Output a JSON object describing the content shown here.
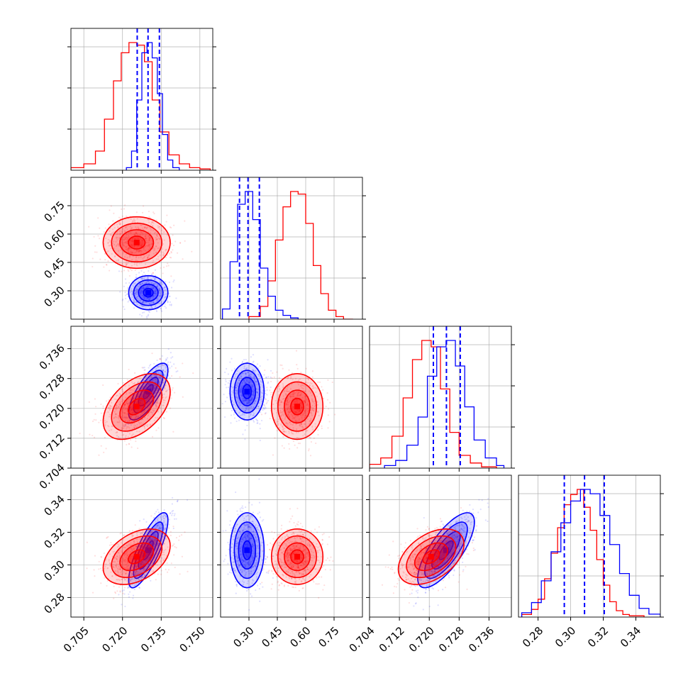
{
  "chart_data": {
    "type": "corner",
    "title": "",
    "grid": true,
    "colors": {
      "red_set": "#ff0000",
      "blue_set": "#0000ff",
      "grid": "#b0b0b0"
    },
    "parameters": [
      {
        "index": 0,
        "axis_range": [
          0.7,
          0.755
        ],
        "ticks": [
          "0.705",
          "0.720",
          "0.735",
          "0.750"
        ],
        "tick_values": [
          0.705,
          0.72,
          0.735,
          0.75
        ]
      },
      {
        "index": 1,
        "axis_range": [
          0.15,
          0.9
        ],
        "ticks": [
          "0.30",
          "0.45",
          "0.60",
          "0.75"
        ],
        "tick_values": [
          0.3,
          0.45,
          0.6,
          0.75
        ]
      },
      {
        "index": 2,
        "axis_range": [
          0.704,
          0.742
        ],
        "ticks": [
          "0.704",
          "0.712",
          "0.720",
          "0.728",
          "0.736"
        ],
        "tick_values": [
          0.704,
          0.712,
          0.72,
          0.728,
          0.736
        ]
      },
      {
        "index": 3,
        "axis_range": [
          0.268,
          0.355
        ],
        "ticks": [
          "0.28",
          "0.30",
          "0.32",
          "0.34"
        ],
        "tick_values": [
          0.28,
          0.3,
          0.32,
          0.34
        ]
      }
    ],
    "series": [
      {
        "color": "#ff0000",
        "mean": [
          0.7255,
          0.555,
          0.7205,
          0.305
        ],
        "std": [
          0.0065,
          0.068,
          0.0044,
          0.0085
        ],
        "correlations": [
          [
            0,
            1,
            0.0
          ],
          [
            0,
            2,
            0.45
          ],
          [
            0,
            3,
            0.4
          ],
          [
            1,
            2,
            0.0
          ],
          [
            1,
            3,
            0.0
          ],
          [
            2,
            3,
            0.45
          ]
        ],
        "histograms": [
          {
            "param": 0,
            "bin_edges": [
              0.7,
              0.705,
              0.7095,
              0.713,
              0.7165,
              0.7195,
              0.7225,
              0.7255,
              0.7285,
              0.7315,
              0.7345,
              0.738,
              0.742,
              0.746,
              0.75,
              0.754
            ],
            "counts": [
              2,
              5,
              15,
              40,
              70,
              92,
              100,
              98,
              85,
              55,
              30,
              12,
              5,
              2,
              1
            ]
          },
          {
            "param": 1,
            "bin_edges": [
              0.3,
              0.36,
              0.4,
              0.44,
              0.48,
              0.52,
              0.56,
              0.6,
              0.64,
              0.68,
              0.72,
              0.76,
              0.8,
              0.85
            ],
            "counts": [
              2,
              10,
              30,
              62,
              88,
              100,
              98,
              75,
              42,
              20,
              7,
              2,
              0
            ]
          },
          {
            "param": 2,
            "bin_edges": [
              0.704,
              0.707,
              0.71,
              0.713,
              0.7155,
              0.718,
              0.7205,
              0.723,
              0.7255,
              0.728,
              0.731,
              0.734,
              0.738
            ],
            "counts": [
              3,
              8,
              25,
              55,
              85,
              100,
              95,
              62,
              28,
              10,
              4,
              1
            ]
          },
          {
            "param": 3,
            "bin_edges": [
              0.27,
              0.276,
              0.28,
              0.284,
              0.288,
              0.292,
              0.296,
              0.3,
              0.304,
              0.308,
              0.312,
              0.316,
              0.32,
              0.324,
              0.328,
              0.332,
              0.336,
              0.345
            ],
            "counts": [
              2,
              6,
              14,
              30,
              50,
              70,
              88,
              96,
              100,
              86,
              68,
              45,
              25,
              12,
              5,
              2,
              1
            ]
          }
        ]
      },
      {
        "color": "#0000ff",
        "mean": [
          0.73,
          0.29,
          0.7245,
          0.309
        ],
        "std": [
          0.0038,
          0.045,
          0.0038,
          0.0115
        ],
        "correlations": [
          [
            0,
            1,
            0.0
          ],
          [
            0,
            2,
            0.75
          ],
          [
            0,
            3,
            0.8
          ],
          [
            1,
            2,
            0.0
          ],
          [
            1,
            3,
            0.0
          ],
          [
            2,
            3,
            0.75
          ]
        ],
        "quantile_lines": [
          {
            "param": 0,
            "values": [
              0.7257,
              0.7299,
              0.7343
            ]
          },
          {
            "param": 1,
            "values": [
              0.25,
              0.295,
              0.355
            ]
          },
          {
            "param": 2,
            "values": [
              0.7211,
              0.7246,
              0.7283
            ]
          },
          {
            "param": 3,
            "values": [
              0.2961,
              0.3085,
              0.3206
            ]
          }
        ],
        "histograms": [
          {
            "param": 0,
            "bin_edges": [
              0.7215,
              0.7235,
              0.7255,
              0.7275,
              0.7295,
              0.7315,
              0.7335,
              0.7355,
              0.7375,
              0.7395,
              0.742
            ],
            "counts": [
              2,
              15,
              55,
              92,
              100,
              88,
              60,
              28,
              8,
              2
            ]
          },
          {
            "param": 1,
            "bin_edges": [
              0.16,
              0.2,
              0.24,
              0.28,
              0.32,
              0.36,
              0.4,
              0.44,
              0.48,
              0.52,
              0.56
            ],
            "counts": [
              8,
              45,
              90,
              100,
              78,
              40,
              18,
              7,
              3,
              1
            ]
          },
          {
            "param": 2,
            "bin_edges": [
              0.708,
              0.711,
              0.714,
              0.717,
              0.7195,
              0.722,
              0.7245,
              0.727,
              0.7295,
              0.732,
              0.735,
              0.738,
              0.74
            ],
            "counts": [
              2,
              6,
              18,
              40,
              72,
              95,
              100,
              80,
              48,
              22,
              8,
              2
            ]
          },
          {
            "param": 3,
            "bin_edges": [
              0.27,
              0.276,
              0.282,
              0.288,
              0.294,
              0.3,
              0.306,
              0.312,
              0.318,
              0.324,
              0.33,
              0.336,
              0.342,
              0.348,
              0.355
            ],
            "counts": [
              3,
              10,
              25,
              45,
              65,
              80,
              88,
              85,
              70,
              50,
              30,
              15,
              6,
              2
            ]
          }
        ]
      }
    ]
  }
}
